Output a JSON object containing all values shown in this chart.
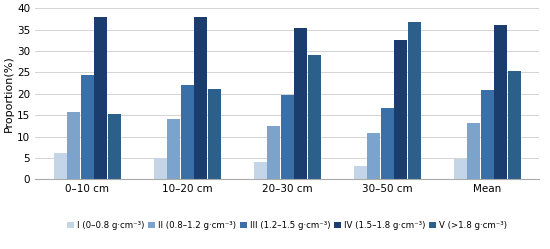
{
  "categories": [
    "0–10 cm",
    "10–20 cm",
    "20–30 cm",
    "30–50 cm",
    "Mean"
  ],
  "series": {
    "I": [
      6.2,
      5.0,
      4.0,
      3.2,
      4.7
    ],
    "II": [
      15.8,
      14.0,
      12.4,
      10.8,
      13.2
    ],
    "III": [
      24.4,
      22.0,
      19.7,
      16.7,
      20.8
    ],
    "IV": [
      38.0,
      38.0,
      35.4,
      32.5,
      36.0
    ],
    "V": [
      15.3,
      21.1,
      29.0,
      36.7,
      25.4
    ]
  },
  "colors": [
    "#c5d5e8",
    "#7ba3cc",
    "#3a6fa8",
    "#1b3d6e",
    "#2c5f8a"
  ],
  "ylabel": "Proportion(%)",
  "ylim": [
    0,
    40
  ],
  "yticks": [
    0,
    5,
    10,
    15,
    20,
    25,
    30,
    35,
    40
  ],
  "bar_width": 0.13,
  "background_color": "#ffffff",
  "grid_color": "#cccccc",
  "legend_fontsize": 6.2,
  "axis_fontsize": 8,
  "tick_fontsize": 7.5,
  "legend_labels": [
    "I (0–0.8 g·cm⁻³)",
    "II (0.8–1.2 g·cm⁻³)",
    "III (1.2–1.5 g·cm⁻³)",
    "IV (1.5–1.8 g·cm⁻³)",
    "V (>1.8 g·cm⁻³)"
  ]
}
